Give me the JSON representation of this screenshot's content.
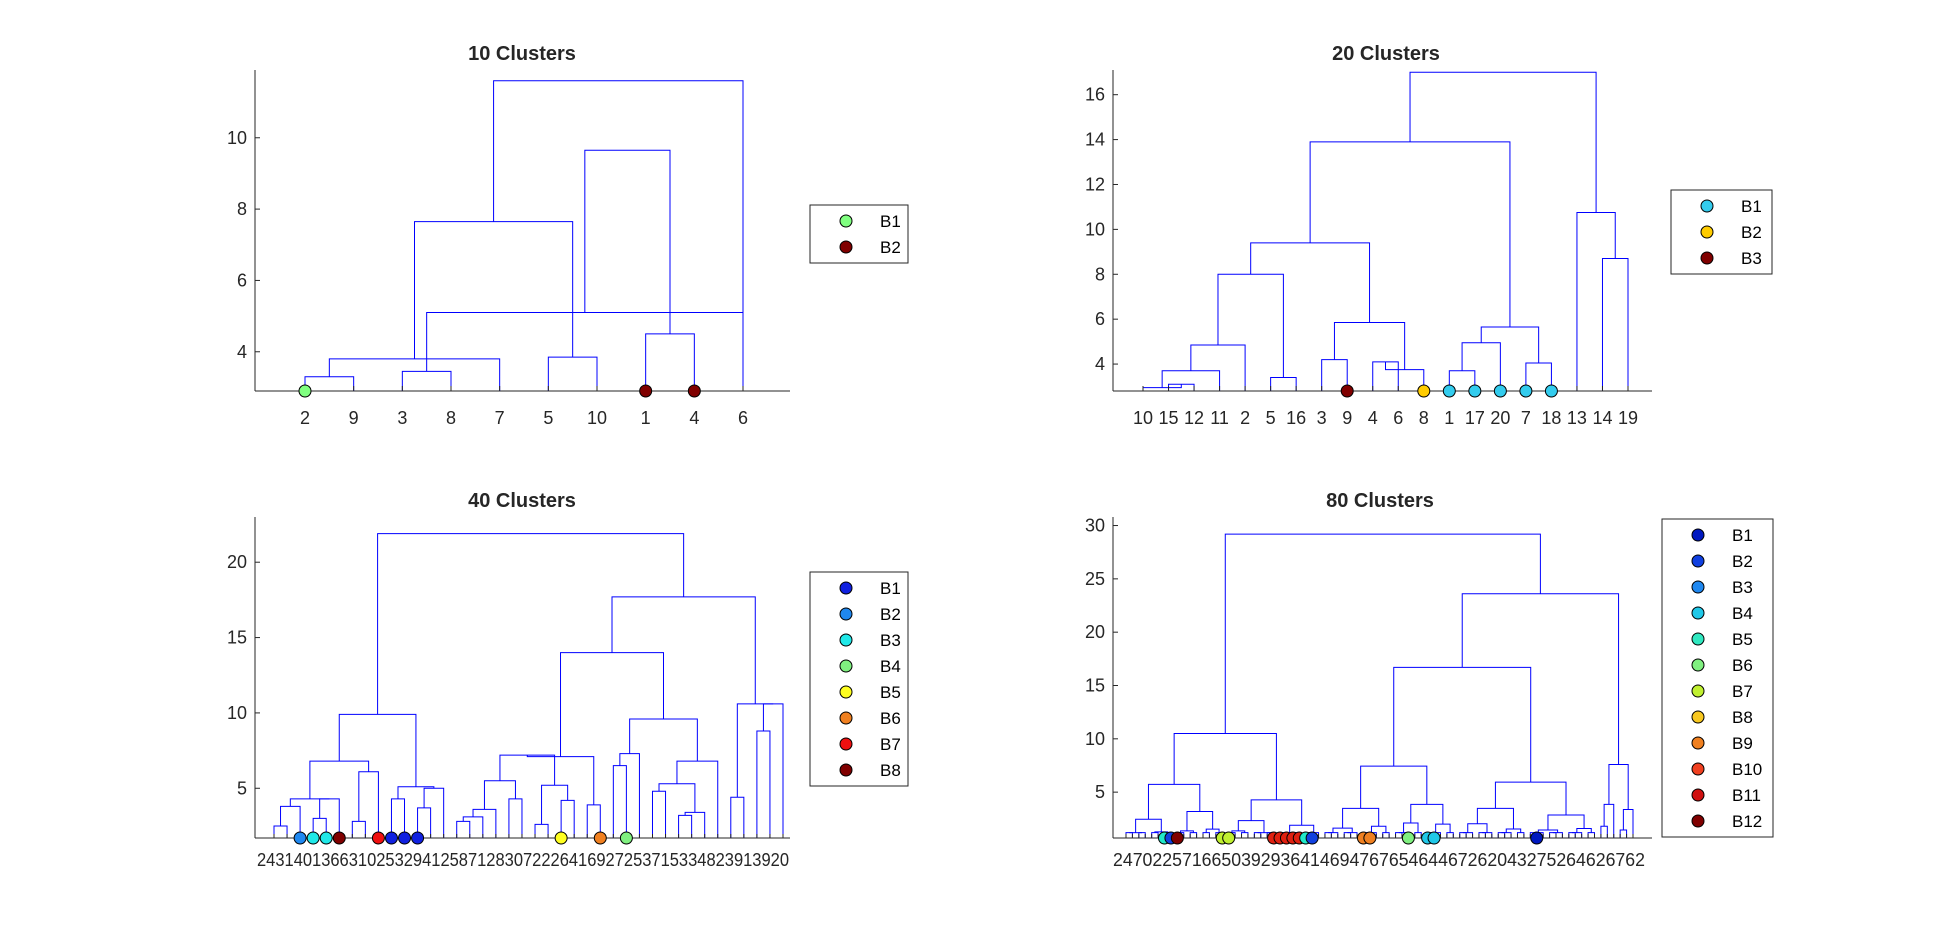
{
  "chart_data": [
    {
      "type": "dendrogram",
      "title": "10 Clusters",
      "xlabel": "",
      "ylabel": "",
      "ylim": [
        2.9,
        11.9
      ],
      "yticks": [
        4,
        6,
        8,
        10
      ],
      "leaf_labels": [
        "2",
        "9",
        "3",
        "8",
        "7",
        "5",
        "10",
        "1",
        "4",
        "6"
      ],
      "links": [
        [
          1,
          2,
          3.3
        ],
        [
          3,
          4,
          3.45
        ],
        [
          11,
          5,
          3.8
        ],
        [
          6,
          7,
          3.85
        ],
        [
          8,
          9,
          4.5
        ],
        [
          10,
          12,
          5.1
        ],
        [
          14,
          13,
          7.65
        ],
        [
          16,
          15,
          9.65
        ],
        [
          17,
          10,
          11.6
        ]
      ],
      "markers": [
        {
          "leaf": 1,
          "color": "#80ff80"
        },
        {
          "leaf": 8,
          "color": "#800000"
        },
        {
          "leaf": 9,
          "color": "#800000"
        }
      ],
      "legend": [
        {
          "label": "B1",
          "color": "#80ff80"
        },
        {
          "label": "B2",
          "color": "#800000"
        }
      ]
    },
    {
      "type": "dendrogram",
      "title": "20 Clusters",
      "xlabel": "",
      "ylabel": "",
      "ylim": [
        2.8,
        17.1
      ],
      "yticks": [
        4,
        6,
        8,
        10,
        12,
        14,
        16
      ],
      "leaf_labels": [
        "10",
        "15",
        "12",
        "11",
        "2",
        "5",
        "16",
        "3",
        "9",
        "4",
        "6",
        "8",
        "1",
        "17",
        "20",
        "7",
        "18",
        "13",
        "14",
        "19"
      ],
      "links": [
        [
          2,
          3,
          3.1
        ],
        [
          1,
          21,
          2.95
        ],
        [
          22,
          4,
          3.7
        ],
        [
          23,
          5,
          4.85
        ],
        [
          6,
          7,
          3.4
        ],
        [
          24,
          25,
          8.0
        ],
        [
          8,
          9,
          4.2
        ],
        [
          10,
          11,
          4.1
        ],
        [
          28,
          12,
          3.75
        ],
        [
          27,
          29,
          5.85
        ],
        [
          26,
          30,
          9.4
        ],
        [
          13,
          14,
          3.7
        ],
        [
          32,
          15,
          4.95
        ],
        [
          16,
          17,
          4.05
        ],
        [
          33,
          34,
          5.65
        ],
        [
          31,
          35,
          13.9
        ],
        [
          19,
          20,
          8.7
        ],
        [
          18,
          37,
          10.75
        ],
        [
          36,
          38,
          17.0
        ]
      ],
      "markers": [
        {
          "leaf": 9,
          "color": "#800000"
        },
        {
          "leaf": 12,
          "color": "#ffcc00"
        },
        {
          "leaf": 13,
          "color": "#33ccee"
        },
        {
          "leaf": 14,
          "color": "#33ccee"
        },
        {
          "leaf": 15,
          "color": "#33ccee"
        },
        {
          "leaf": 16,
          "color": "#33ccee"
        },
        {
          "leaf": 17,
          "color": "#33ccee"
        }
      ],
      "legend": [
        {
          "label": "B1",
          "color": "#33ccee"
        },
        {
          "label": "B2",
          "color": "#ffcc00"
        },
        {
          "label": "B3",
          "color": "#800000"
        }
      ]
    },
    {
      "type": "dendrogram",
      "title": "40 Clusters",
      "xlabel": "",
      "ylabel": "",
      "ylim": [
        1.7,
        23.0
      ],
      "yticks": [
        5,
        10,
        15,
        20
      ],
      "leaf_labels_text": "2431401366310253294125871283072226416927253715334823913920",
      "leaf_count": 40,
      "links": [
        [
          1,
          2,
          2.5
        ],
        [
          41,
          3,
          3.8
        ],
        [
          4,
          5,
          3.0
        ],
        [
          43,
          6,
          4.3
        ],
        [
          44,
          42,
          4.3
        ],
        [
          7,
          8,
          2.8
        ],
        [
          46,
          9,
          6.1
        ],
        [
          45,
          47,
          6.8
        ],
        [
          10,
          11,
          4.3
        ],
        [
          12,
          13,
          3.7
        ],
        [
          50,
          14,
          5.0
        ],
        [
          49,
          51,
          5.1
        ],
        [
          48,
          52,
          9.9
        ],
        [
          15,
          16,
          2.8
        ],
        [
          54,
          17,
          3.1
        ],
        [
          55,
          18,
          3.6
        ],
        [
          19,
          20,
          4.3
        ],
        [
          56,
          57,
          5.5
        ],
        [
          21,
          22,
          2.6
        ],
        [
          23,
          24,
          4.2
        ],
        [
          59,
          60,
          5.2
        ],
        [
          58,
          61,
          7.2
        ],
        [
          25,
          26,
          3.9
        ],
        [
          27,
          28,
          6.5
        ],
        [
          62,
          63,
          7.1
        ],
        [
          64,
          29,
          7.3
        ],
        [
          30,
          31,
          4.8
        ],
        [
          32,
          33,
          3.2
        ],
        [
          68,
          34,
          3.4
        ],
        [
          67,
          69,
          5.3
        ],
        [
          70,
          35,
          6.8
        ],
        [
          66,
          71,
          9.6
        ],
        [
          65,
          72,
          14.0
        ],
        [
          36,
          37,
          4.4
        ],
        [
          38,
          39,
          8.8
        ],
        [
          75,
          40,
          10.6
        ],
        [
          74,
          76,
          10.6
        ],
        [
          73,
          77,
          17.7
        ],
        [
          53,
          78,
          21.9
        ]
      ],
      "markers": [
        {
          "leaf": 3,
          "color": "#1f88f0"
        },
        {
          "leaf": 4,
          "color": "#20e8e8"
        },
        {
          "leaf": 5,
          "color": "#20e8e8"
        },
        {
          "leaf": 6,
          "color": "#800000"
        },
        {
          "leaf": 9,
          "color": "#f01010"
        },
        {
          "leaf": 10,
          "color": "#1020e0"
        },
        {
          "leaf": 11,
          "color": "#1020e0"
        },
        {
          "leaf": 12,
          "color": "#1020e0"
        },
        {
          "leaf": 23,
          "color": "#ffff20"
        },
        {
          "leaf": 26,
          "color": "#f08020"
        },
        {
          "leaf": 28,
          "color": "#80f080"
        }
      ],
      "legend": [
        {
          "label": "B1",
          "color": "#1020e0"
        },
        {
          "label": "B2",
          "color": "#1f88f0"
        },
        {
          "label": "B3",
          "color": "#20e8e8"
        },
        {
          "label": "B4",
          "color": "#80f080"
        },
        {
          "label": "B5",
          "color": "#ffff20"
        },
        {
          "label": "B6",
          "color": "#f08020"
        },
        {
          "label": "B7",
          "color": "#f01010"
        },
        {
          "label": "B8",
          "color": "#800000"
        }
      ]
    },
    {
      "type": "dendrogram",
      "title": "80 Clusters",
      "xlabel": "",
      "ylabel": "",
      "ylim": [
        0.7,
        30.8
      ],
      "yticks": [
        5,
        10,
        15,
        20,
        25,
        30
      ],
      "leaf_labels_text": "247022571665039293641469476765464467262043275264626762",
      "leaf_count": 80,
      "markers": [
        {
          "leaf": 7,
          "color": "#20e8c8"
        },
        {
          "leaf": 8,
          "color": "#1040e0"
        },
        {
          "leaf": 9,
          "color": "#800000"
        },
        {
          "leaf": 16,
          "color": "#c0f030"
        },
        {
          "leaf": 17,
          "color": "#c0f030"
        },
        {
          "leaf": 24,
          "color": "#e02010"
        },
        {
          "leaf": 25,
          "color": "#e02010"
        },
        {
          "leaf": 26,
          "color": "#e02010"
        },
        {
          "leaf": 27,
          "color": "#e02010"
        },
        {
          "leaf": 28,
          "color": "#e02010"
        },
        {
          "leaf": 29,
          "color": "#20e8c8"
        },
        {
          "leaf": 30,
          "color": "#1040e0"
        },
        {
          "leaf": 38,
          "color": "#f08020"
        },
        {
          "leaf": 39,
          "color": "#f08020"
        },
        {
          "leaf": 45,
          "color": "#80f080"
        },
        {
          "leaf": 48,
          "color": "#20c8e8"
        },
        {
          "leaf": 49,
          "color": "#20c8e8"
        },
        {
          "leaf": 65,
          "color": "#0018c0"
        }
      ],
      "legend": [
        {
          "label": "B1",
          "color": "#0018c0"
        },
        {
          "label": "B2",
          "color": "#1040e0"
        },
        {
          "label": "B3",
          "color": "#1f88f0"
        },
        {
          "label": "B4",
          "color": "#20c8e8"
        },
        {
          "label": "B5",
          "color": "#30e8c0"
        },
        {
          "label": "B6",
          "color": "#80f080"
        },
        {
          "label": "B7",
          "color": "#c0f030"
        },
        {
          "label": "B8",
          "color": "#f8c820"
        },
        {
          "label": "B9",
          "color": "#f08020"
        },
        {
          "label": "B10",
          "color": "#f04020"
        },
        {
          "label": "B11",
          "color": "#d01010"
        },
        {
          "label": "B12",
          "color": "#800000"
        }
      ]
    }
  ]
}
